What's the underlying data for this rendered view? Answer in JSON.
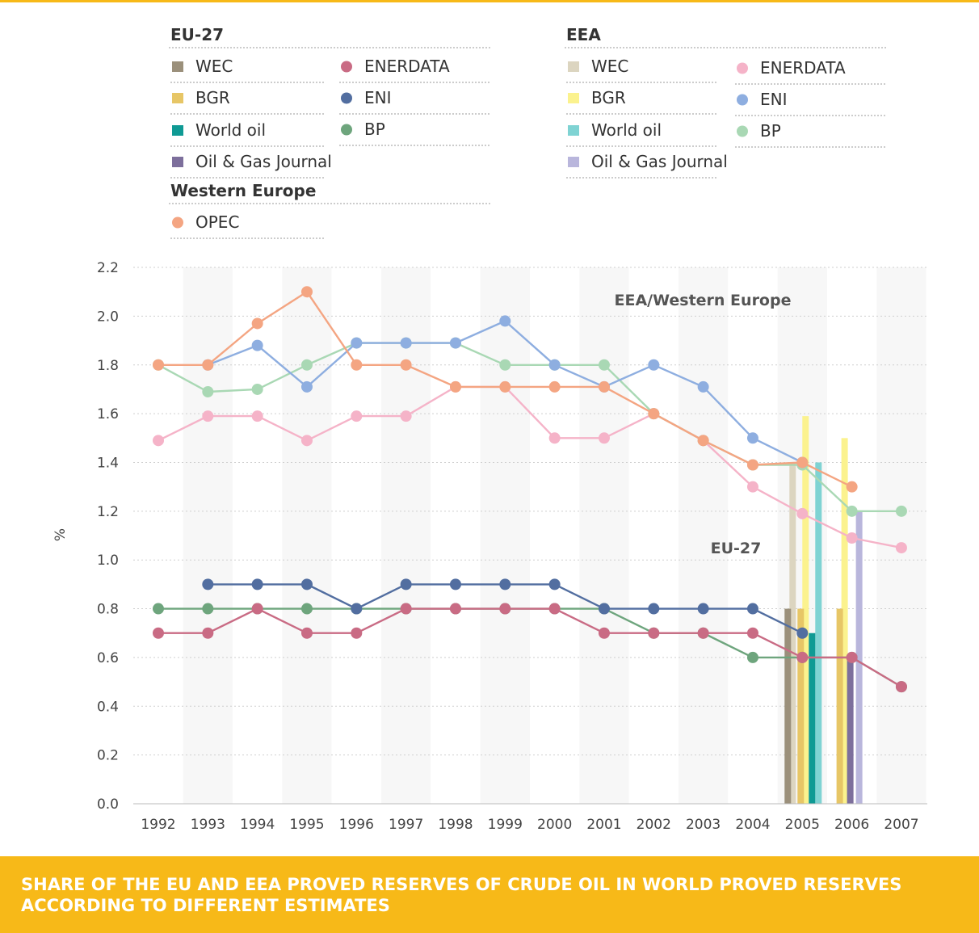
{
  "caption": {
    "line1": "SHARE OF THE EU AND EEA PROVED RESERVES OF CRUDE OIL IN WORLD PROVED RESERVES",
    "line2": "ACCORDING TO DIFFERENT ESTIMATES"
  },
  "legend": {
    "eu27_heading": "EU-27",
    "eea_heading": "EEA",
    "western_europe_heading": "Western Europe"
  },
  "colors": {
    "banner": "#f7b918",
    "eu_wec": "#9b907b",
    "eu_bgr": "#e7c666",
    "eu_world_oil": "#0f9a94",
    "eu_ogj": "#7d6f9c",
    "eu_enerdata": "#c96b84",
    "eu_eni": "#526ea0",
    "eu_bp": "#6ea57d",
    "eea_wec": "#dcd5c0",
    "eea_bgr": "#fbf28e",
    "eea_world_oil": "#7fd3d3",
    "eea_ogj": "#b9b6dc",
    "eea_enerdata": "#f5b3c8",
    "eea_eni": "#8eaee0",
    "eea_bp": "#a9d8b4",
    "opec": "#f4a582"
  },
  "chart_data": {
    "type": "line",
    "ylabel": "%",
    "ylim": [
      0,
      2.2
    ],
    "yticks": [
      "0.0",
      "0.2",
      "0.4",
      "0.6",
      "0.8",
      "1.0",
      "1.2",
      "1.4",
      "1.6",
      "1.8",
      "2.0",
      "2.2"
    ],
    "categories": [
      "1992",
      "1993",
      "1994",
      "1995",
      "1996",
      "1997",
      "1998",
      "1999",
      "2000",
      "2001",
      "2002",
      "2003",
      "2004",
      "2005",
      "2006",
      "2007"
    ],
    "annotations": [
      "EEA/Western Europe",
      "EU-27"
    ],
    "grid": true,
    "legend_position": "top",
    "series": [
      {
        "name": "ENERDATA",
        "group": "EEA",
        "kind": "line",
        "color_key": "eea_enerdata",
        "values": [
          1.49,
          1.59,
          1.59,
          1.49,
          1.59,
          1.59,
          1.71,
          1.71,
          1.5,
          1.5,
          1.6,
          1.49,
          1.3,
          1.19,
          1.09,
          1.05
        ]
      },
      {
        "name": "BP",
        "group": "EEA",
        "kind": "line",
        "color_key": "eea_bp",
        "values": [
          1.8,
          1.69,
          1.7,
          1.8,
          1.89,
          1.89,
          1.89,
          1.8,
          1.8,
          1.8,
          1.6,
          1.49,
          1.39,
          1.39,
          1.2,
          1.2
        ]
      },
      {
        "name": "ENI",
        "group": "EEA",
        "kind": "line",
        "color_key": "eea_eni",
        "values": [
          null,
          1.8,
          1.88,
          1.71,
          1.89,
          1.89,
          1.89,
          1.98,
          1.8,
          1.71,
          1.8,
          1.71,
          1.5,
          1.4,
          null,
          null
        ]
      },
      {
        "name": "OPEC",
        "group": "Western Europe",
        "kind": "line",
        "color_key": "opec",
        "values": [
          1.8,
          1.8,
          1.97,
          2.1,
          1.8,
          1.8,
          1.71,
          1.71,
          1.71,
          1.71,
          1.6,
          1.49,
          1.39,
          1.4,
          1.3,
          null
        ]
      },
      {
        "name": "BP",
        "group": "EU-27",
        "kind": "line",
        "color_key": "eu_bp",
        "values": [
          0.8,
          0.8,
          0.8,
          0.8,
          0.8,
          0.8,
          0.8,
          0.8,
          0.8,
          0.8,
          0.7,
          0.7,
          0.6,
          0.6,
          0.6,
          0.48
        ]
      },
      {
        "name": "ENERDATA",
        "group": "EU-27",
        "kind": "line",
        "color_key": "eu_enerdata",
        "values": [
          0.7,
          0.7,
          0.8,
          0.7,
          0.7,
          0.8,
          0.8,
          0.8,
          0.8,
          0.7,
          0.7,
          0.7,
          0.7,
          0.6,
          0.6,
          0.48
        ]
      },
      {
        "name": "ENI",
        "group": "EU-27",
        "kind": "line",
        "color_key": "eu_eni",
        "values": [
          null,
          0.9,
          0.9,
          0.9,
          0.8,
          0.9,
          0.9,
          0.9,
          0.9,
          0.8,
          0.8,
          0.8,
          0.8,
          0.7,
          null,
          null
        ]
      },
      {
        "name": "WEC",
        "group": "EU-27",
        "kind": "bar",
        "color_key": "eu_wec",
        "values": [
          null,
          null,
          null,
          null,
          null,
          null,
          null,
          null,
          null,
          null,
          null,
          null,
          null,
          0.8,
          null,
          null
        ]
      },
      {
        "name": "WEC",
        "group": "EEA",
        "kind": "bar",
        "color_key": "eea_wec",
        "values": [
          null,
          null,
          null,
          null,
          null,
          null,
          null,
          null,
          null,
          null,
          null,
          null,
          null,
          1.4,
          null,
          null
        ]
      },
      {
        "name": "BGR",
        "group": "EU-27",
        "kind": "bar",
        "color_key": "eu_bgr",
        "values": [
          null,
          null,
          null,
          null,
          null,
          null,
          null,
          null,
          null,
          null,
          null,
          null,
          null,
          0.8,
          0.8,
          null
        ]
      },
      {
        "name": "BGR",
        "group": "EEA",
        "kind": "bar",
        "color_key": "eea_bgr",
        "values": [
          null,
          null,
          null,
          null,
          null,
          null,
          null,
          null,
          null,
          null,
          null,
          null,
          null,
          1.59,
          1.5,
          null
        ]
      },
      {
        "name": "World oil",
        "group": "EU-27",
        "kind": "bar",
        "color_key": "eu_world_oil",
        "values": [
          null,
          null,
          null,
          null,
          null,
          null,
          null,
          null,
          null,
          null,
          null,
          null,
          null,
          0.7,
          null,
          null
        ]
      },
      {
        "name": "World oil",
        "group": "EEA",
        "kind": "bar",
        "color_key": "eea_world_oil",
        "values": [
          null,
          null,
          null,
          null,
          null,
          null,
          null,
          null,
          null,
          null,
          null,
          null,
          null,
          1.4,
          null,
          null
        ]
      },
      {
        "name": "Oil & Gas Journal",
        "group": "EU-27",
        "kind": "bar",
        "color_key": "eu_ogj",
        "values": [
          null,
          null,
          null,
          null,
          null,
          null,
          null,
          null,
          null,
          null,
          null,
          null,
          null,
          null,
          0.6,
          null
        ]
      },
      {
        "name": "Oil & Gas Journal",
        "group": "EEA",
        "kind": "bar",
        "color_key": "eea_ogj",
        "values": [
          null,
          null,
          null,
          null,
          null,
          null,
          null,
          null,
          null,
          null,
          null,
          null,
          null,
          null,
          1.2,
          null
        ]
      }
    ]
  }
}
